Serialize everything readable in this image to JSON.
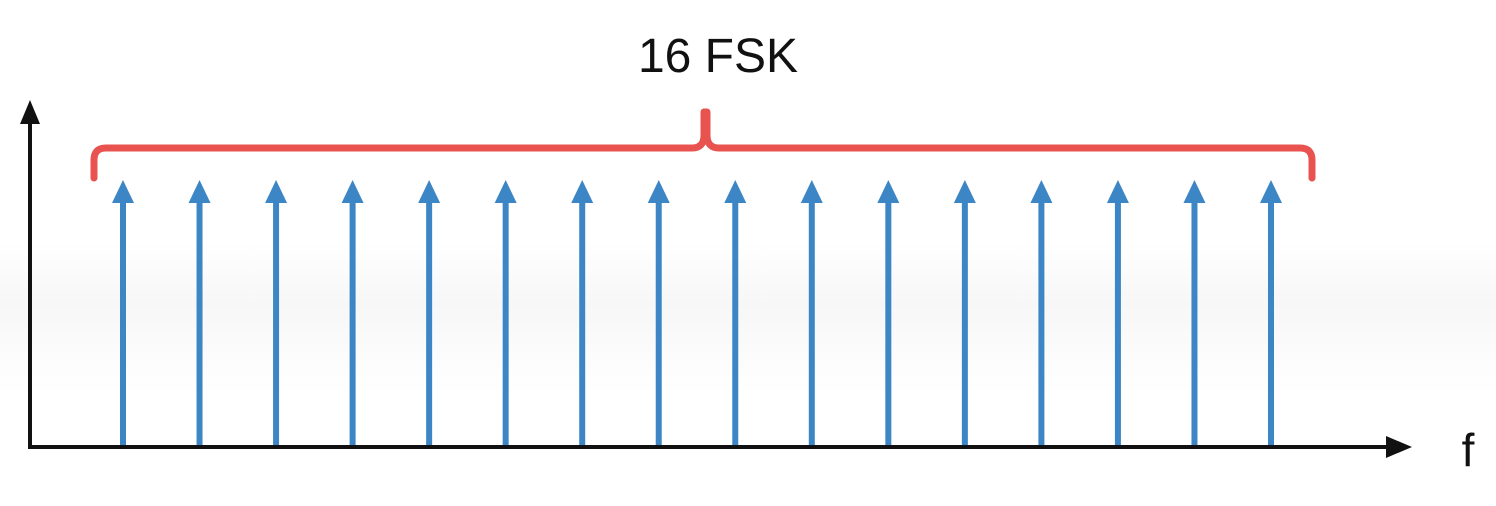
{
  "title": "16 FSK",
  "axis": {
    "x_label": "f"
  },
  "colors": {
    "axis": "#111111",
    "tone_arrow": "#3d86c6",
    "brace": "#e8534f",
    "text": "#111111"
  },
  "tones": {
    "count": 16,
    "relative_height": 1.0
  }
}
